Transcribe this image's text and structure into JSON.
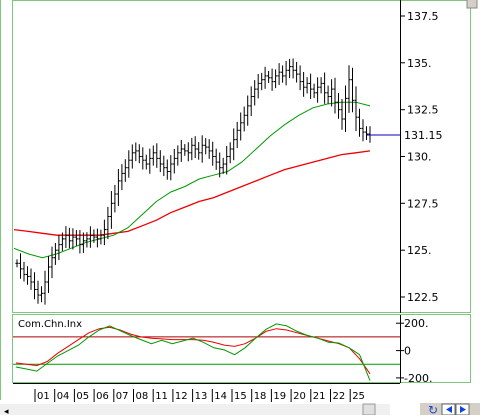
{
  "colors": {
    "price": "#000000",
    "ma_slow": "#ee0000",
    "ma_fast": "#009900",
    "panel_border": "#7fc67f",
    "cci": "#009900",
    "cci_signal": "#ee0000",
    "cci_upper_band": "#aa0000",
    "cci_lower_band": "#009900",
    "last_price_line": "#0000bb"
  },
  "icons": [
    "scroll-left-arrow-icon",
    "refresh-icon",
    "scroll-left-icon",
    "scroll-right-icon"
  ],
  "chart_data": [
    {
      "type": "line",
      "title": "",
      "price_ylim": [
        121.7,
        138.3
      ],
      "yticks": [
        137.5,
        135,
        132.5,
        130,
        127.5,
        125,
        122.5
      ],
      "ytick_labels": [
        "137.5",
        "135.",
        "132.5",
        "130.",
        "127.5",
        "125.",
        "122.5"
      ],
      "last_price": 131.15,
      "last_price_label": "131.15",
      "x_tick_labels": [
        "01",
        "04",
        "05",
        "06",
        "07",
        "08",
        "11",
        "12",
        "13",
        "14",
        "15",
        "18",
        "19",
        "20",
        "21",
        "22",
        "25"
      ],
      "series": [
        {
          "role": "price-bars",
          "values": [
            124.3,
            124.0,
            123.7,
            123.6,
            123.3,
            122.9,
            122.6,
            122.7,
            123.3,
            124.1,
            124.6,
            125.0,
            125.3,
            125.6,
            125.8,
            125.5,
            125.7,
            125.6,
            125.3,
            125.5,
            125.6,
            125.8,
            125.7,
            125.6,
            125.8,
            126.1,
            126.8,
            127.5,
            128.0,
            128.7,
            129.1,
            129.4,
            129.8,
            130.2,
            130.3,
            130.0,
            129.8,
            129.6,
            129.9,
            130.2,
            129.9,
            129.6,
            129.4,
            129.2,
            129.6,
            129.9,
            130.2,
            130.4,
            130.3,
            130.2,
            130.6,
            130.4,
            130.2,
            130.6,
            130.5,
            130.3,
            130.0,
            129.7,
            129.4,
            129.6,
            130.0,
            130.4,
            130.9,
            131.4,
            131.8,
            132.2,
            132.7,
            133.2,
            133.6,
            133.9,
            134.1,
            134.3,
            134.2,
            134.0,
            134.3,
            134.5,
            134.3,
            134.6,
            134.8,
            134.6,
            134.4,
            134.0,
            133.7,
            133.9,
            133.6,
            133.4,
            133.7,
            133.9,
            133.4,
            133.2,
            133.6,
            132.9,
            132.5,
            132.0,
            133.1,
            134.1,
            133.0,
            132.1,
            131.5,
            131.3,
            131.2,
            131.15
          ]
        },
        {
          "role": "ma-slow",
          "values": [
            126.1,
            126.0,
            125.9,
            125.8,
            125.8,
            125.8,
            125.8,
            125.9,
            126.0,
            126.3,
            126.6,
            127.0,
            127.3,
            127.6,
            127.8,
            128.1,
            128.4,
            128.7,
            129.0,
            129.3,
            129.5,
            129.7,
            129.9,
            130.1,
            130.2,
            130.3
          ]
        },
        {
          "role": "ma-fast",
          "values": [
            125.1,
            124.8,
            124.6,
            124.8,
            125.1,
            125.4,
            125.6,
            125.8,
            126.2,
            126.9,
            127.6,
            128.1,
            128.4,
            128.8,
            129.0,
            129.2,
            129.7,
            130.4,
            131.1,
            131.7,
            132.2,
            132.6,
            132.8,
            132.9,
            132.9,
            132.7
          ]
        }
      ]
    },
    {
      "type": "line",
      "title": "Com.Chn.Inx",
      "ylim": [
        -230,
        260
      ],
      "yticks": [
        200,
        0,
        -200
      ],
      "ytick_labels": [
        "200.",
        "0",
        "-200."
      ],
      "bands": [
        100,
        -100
      ],
      "series": [
        {
          "role": "cci",
          "values": [
            -120,
            -135,
            -150,
            -95,
            -40,
            0,
            40,
            100,
            150,
            180,
            145,
            110,
            80,
            50,
            75,
            50,
            70,
            90,
            60,
            20,
            5,
            -30,
            20,
            90,
            155,
            195,
            180,
            140,
            110,
            90,
            60,
            55,
            20,
            -30,
            -220
          ]
        },
        {
          "role": "cci-signal",
          "values": [
            -90,
            -100,
            -110,
            -80,
            -20,
            30,
            80,
            130,
            160,
            170,
            150,
            120,
            100,
            90,
            85,
            80,
            80,
            80,
            75,
            60,
            40,
            30,
            50,
            90,
            140,
            160,
            150,
            130,
            110,
            90,
            70,
            50,
            20,
            -60,
            -170
          ]
        }
      ]
    }
  ]
}
